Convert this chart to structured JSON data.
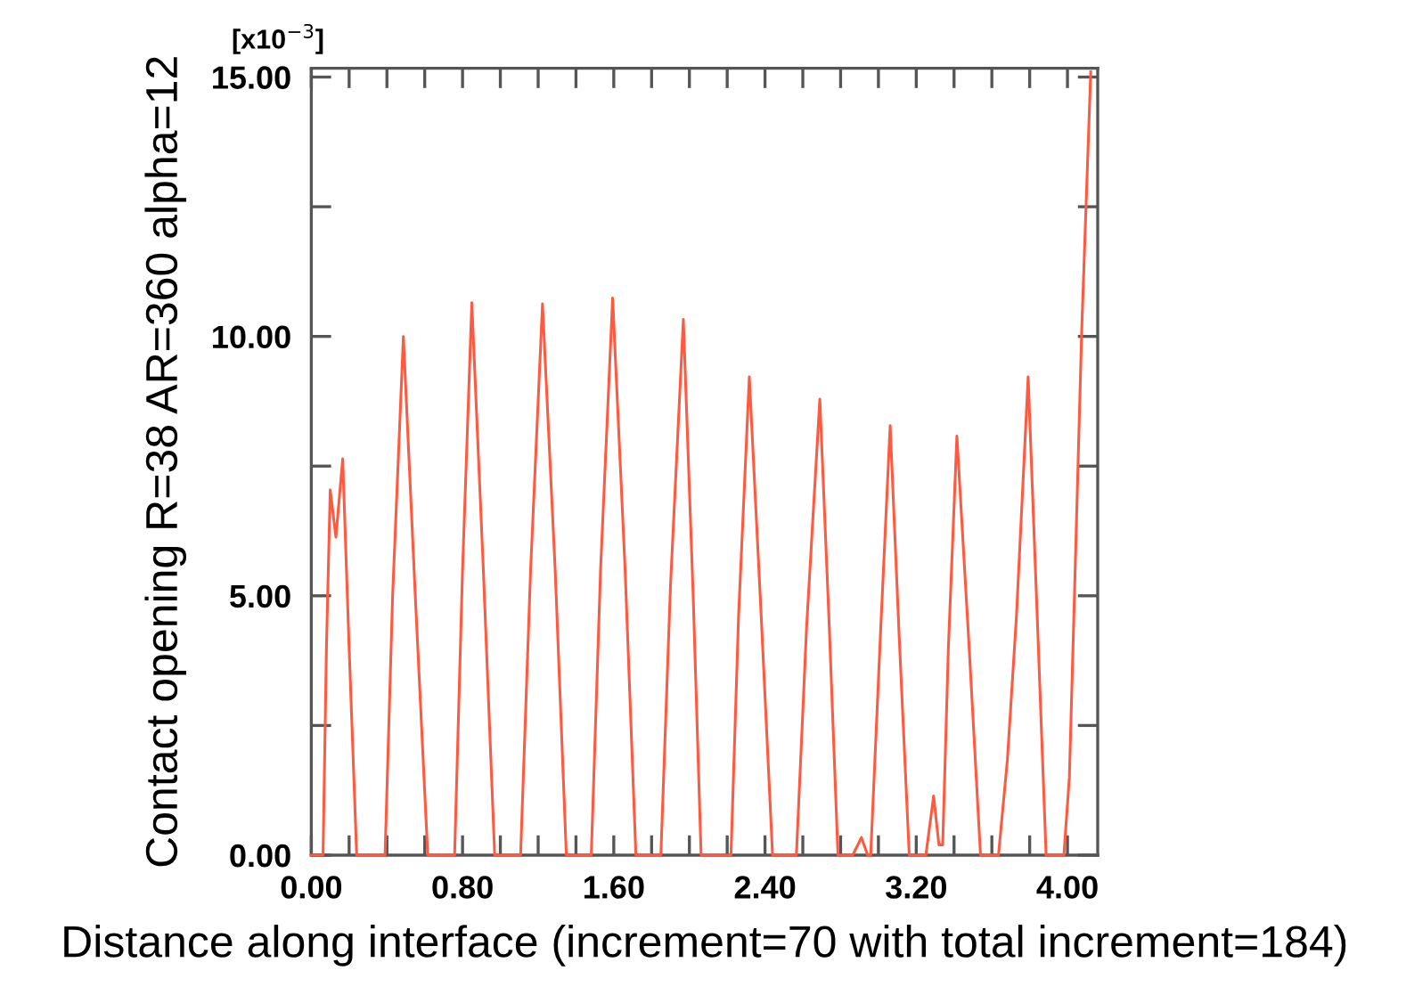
{
  "chart_data": {
    "type": "line",
    "xlabel": "Distance along interface (increment=70 with total increment=184)",
    "ylabel": "Contact opening R=38 AR=360 alpha=12",
    "annotations": [
      "[x10$^{−3}$]"
    ],
    "xlim": [
      0,
      4.16
    ],
    "ylim": [
      0,
      15.17
    ],
    "xticks": [
      {
        "value": 0,
        "label": "0.00"
      },
      {
        "value": 0.2,
        "label": null
      },
      {
        "value": 0.4,
        "label": null
      },
      {
        "value": 0.6,
        "label": null
      },
      {
        "value": 0.8,
        "label": "0.80"
      },
      {
        "value": 1.0,
        "label": null
      },
      {
        "value": 1.2,
        "label": null
      },
      {
        "value": 1.4,
        "label": null
      },
      {
        "value": 1.6,
        "label": "1.60"
      },
      {
        "value": 1.8,
        "label": null
      },
      {
        "value": 2.0,
        "label": null
      },
      {
        "value": 2.2,
        "label": null
      },
      {
        "value": 2.4,
        "label": "2.40"
      },
      {
        "value": 2.6,
        "label": null
      },
      {
        "value": 2.8,
        "label": null
      },
      {
        "value": 3.0,
        "label": null
      },
      {
        "value": 3.2,
        "label": "3.20"
      },
      {
        "value": 3.4,
        "label": null
      },
      {
        "value": 3.6,
        "label": null
      },
      {
        "value": 3.8,
        "label": null
      },
      {
        "value": 4.0,
        "label": "4.00"
      }
    ],
    "yticks": [
      {
        "value": 0,
        "label": "0.00"
      },
      {
        "value": 2.5,
        "label": null
      },
      {
        "value": 5,
        "label": "5.00"
      },
      {
        "value": 7.5,
        "label": null
      },
      {
        "value": 10,
        "label": "10.00"
      },
      {
        "value": 12.5,
        "label": null
      },
      {
        "value": 15,
        "label": "15.00"
      }
    ],
    "grid": false,
    "legend": false,
    "marker": "none",
    "line_style": "solid",
    "series": [
      {
        "color": "#ff5a40",
        "x": [
          0,
          0.062,
          0.08,
          0.1,
          0.13,
          0.166,
          0.2,
          0.24,
          0.39,
          0.43,
          0.487,
          0.55,
          0.616,
          0.758,
          0.8,
          0.849,
          0.91,
          0.97,
          1.107,
          1.16,
          1.223,
          1.29,
          1.349,
          1.481,
          1.53,
          1.594,
          1.66,
          1.717,
          1.849,
          1.9,
          1.968,
          2.02,
          2.062,
          2.22,
          2.26,
          2.317,
          2.38,
          2.44,
          2.566,
          2.62,
          2.69,
          2.74,
          2.786,
          2.864,
          2.91,
          2.943,
          2.959,
          3.01,
          3.062,
          3.11,
          3.163,
          3.251,
          3.292,
          3.32,
          3.34,
          3.37,
          3.415,
          3.48,
          3.54,
          3.635,
          3.682,
          3.73,
          3.792,
          3.84,
          3.887,
          3.981,
          4.01,
          4.038,
          4.075,
          4.1,
          4.123
        ],
        "values": [
          0,
          0,
          4.0,
          7.04,
          6.13,
          7.64,
          4.0,
          0,
          0,
          5.0,
          10.0,
          5.0,
          0,
          0,
          5.5,
          10.65,
          5.5,
          0,
          0,
          5.5,
          10.63,
          5.5,
          0,
          0,
          5.5,
          10.74,
          5.5,
          0,
          0,
          5.2,
          10.33,
          5.0,
          0,
          0,
          4.6,
          9.22,
          4.6,
          0,
          0,
          4.4,
          8.79,
          4.4,
          0,
          0,
          0.34,
          0,
          0,
          4.2,
          8.28,
          4.2,
          0,
          0,
          1.14,
          0.2,
          0.2,
          4.0,
          8.08,
          4.0,
          0,
          0,
          1.83,
          4.6,
          9.22,
          4.6,
          0,
          0,
          1.5,
          5.15,
          10.08,
          12.7,
          15.1
        ]
      }
    ]
  }
}
